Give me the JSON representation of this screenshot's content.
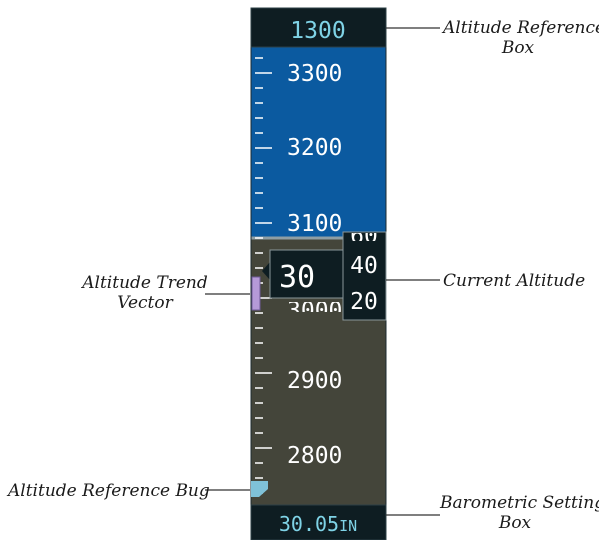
{
  "altitude_tape": {
    "reference_value": "1300",
    "scale_labels": [
      "3300",
      "3200",
      "3100",
      "2900",
      "2800"
    ],
    "current_altitude": {
      "hundreds": "30",
      "rolling_upper": "40",
      "rolling_lower": "20"
    },
    "barometric_setting": "30.05",
    "barometric_unit": "IN",
    "colors": {
      "sky": "#0b5aa0",
      "ground": "#44453a",
      "box": "#0e1d22",
      "reading_text": "#ffffff",
      "reference_text": "#7fd3e6",
      "baro_text": "#7fd3e6",
      "trend_vector": "#b59ad8",
      "reference_bug": "#7fc1d8"
    }
  },
  "callouts": {
    "altitude_reference_box": [
      "Altitude Reference",
      "Box"
    ],
    "current_altitude": [
      "Current Altitude"
    ],
    "altitude_trend_vector": [
      "Altitude Trend",
      "Vector"
    ],
    "altitude_reference_bug": [
      "Altitude Reference Bug"
    ],
    "barometric_setting_box": [
      "Barometric Setting",
      "Box"
    ]
  }
}
